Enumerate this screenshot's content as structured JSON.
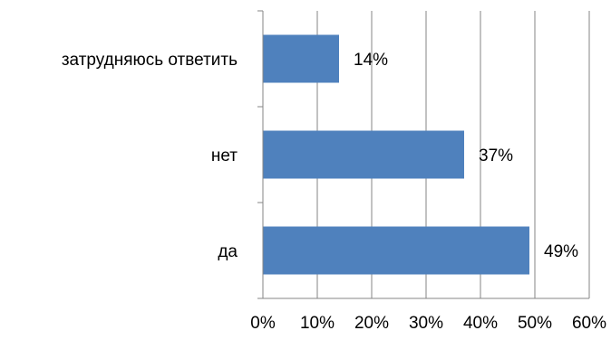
{
  "chart_data": {
    "type": "bar",
    "orientation": "horizontal",
    "categories": [
      "да",
      "нет",
      "затрудняюсь ответить"
    ],
    "values": [
      49,
      37,
      14
    ],
    "data_labels": [
      "49%",
      "37%",
      "14%"
    ],
    "xlim": [
      0,
      60
    ],
    "x_ticks": [
      0,
      10,
      20,
      30,
      40,
      50,
      60
    ],
    "x_tick_labels": [
      "0%",
      "10%",
      "20%",
      "30%",
      "40%",
      "50%",
      "60%"
    ],
    "grid": "vertical",
    "legend": "none",
    "bar_color": "#4F81BD",
    "grid_color": "#868686"
  }
}
